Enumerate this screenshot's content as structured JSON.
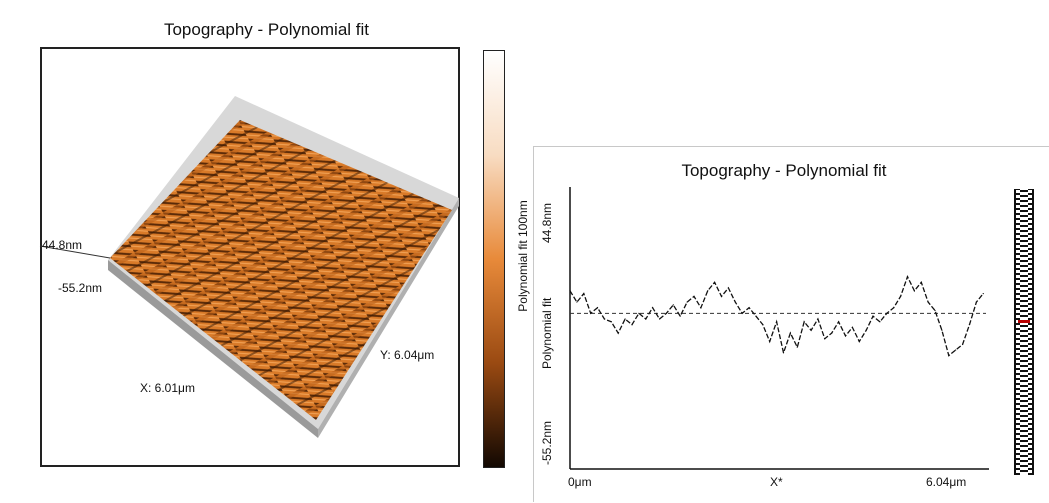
{
  "chart_data": [
    {
      "type": "surface-3d",
      "title": "Topography - Polynomial fit",
      "colorbar_label": "Polynomial fit 100nm",
      "z_max_label": "44.8nm",
      "z_min_label": "-55.2nm",
      "x_axis_label": "X: 6.01μm",
      "y_axis_label": "Y: 6.04μm",
      "colormap": [
        "#ffffff",
        "#f8dcc2",
        "#e88a3a",
        "#9a4a12",
        "#120802"
      ],
      "surface_color": "#d97a28"
    },
    {
      "type": "line",
      "title": "Topography - Polynomial fit",
      "ylabel_top": "44.8nm",
      "ylabel_mid": "Polynomial fit",
      "ylabel_bottom": "-55.2nm",
      "xlabel_left": "0μm",
      "xlabel_mid": "X*",
      "xlabel_right": "6.04μm",
      "ylim": [
        -55.2,
        44.8
      ],
      "xlim": [
        0,
        6.04
      ],
      "line_color": "#111111",
      "reference_line": 0,
      "x": [
        0.0,
        0.1,
        0.2,
        0.3,
        0.4,
        0.5,
        0.6,
        0.7,
        0.8,
        0.9,
        1.0,
        1.1,
        1.2,
        1.3,
        1.4,
        1.5,
        1.6,
        1.7,
        1.8,
        1.9,
        2.0,
        2.1,
        2.2,
        2.3,
        2.4,
        2.5,
        2.6,
        2.7,
        2.8,
        2.9,
        3.0,
        3.1,
        3.2,
        3.3,
        3.4,
        3.5,
        3.6,
        3.7,
        3.8,
        3.9,
        4.0,
        4.1,
        4.2,
        4.3,
        4.4,
        4.5,
        4.6,
        4.7,
        4.8,
        4.9,
        5.0,
        5.1,
        5.2,
        5.3,
        5.4,
        5.5,
        5.6,
        5.7,
        5.8,
        5.9,
        6.0
      ],
      "values": [
        8,
        4,
        7,
        0,
        2,
        -2,
        -3,
        -7,
        -2,
        -4,
        0,
        -2,
        2,
        -2,
        0,
        3,
        -1,
        4,
        6,
        2,
        8,
        11,
        6,
        9,
        4,
        0,
        2,
        -1,
        -4,
        -10,
        -3,
        -14,
        -7,
        -12,
        -3,
        -6,
        -2,
        -9,
        -7,
        -3,
        -8,
        -5,
        -10,
        -6,
        -1,
        -3,
        0,
        2,
        6,
        13,
        8,
        11,
        4,
        1,
        -6,
        -15,
        -13,
        -11,
        -4,
        4,
        7
      ]
    }
  ]
}
